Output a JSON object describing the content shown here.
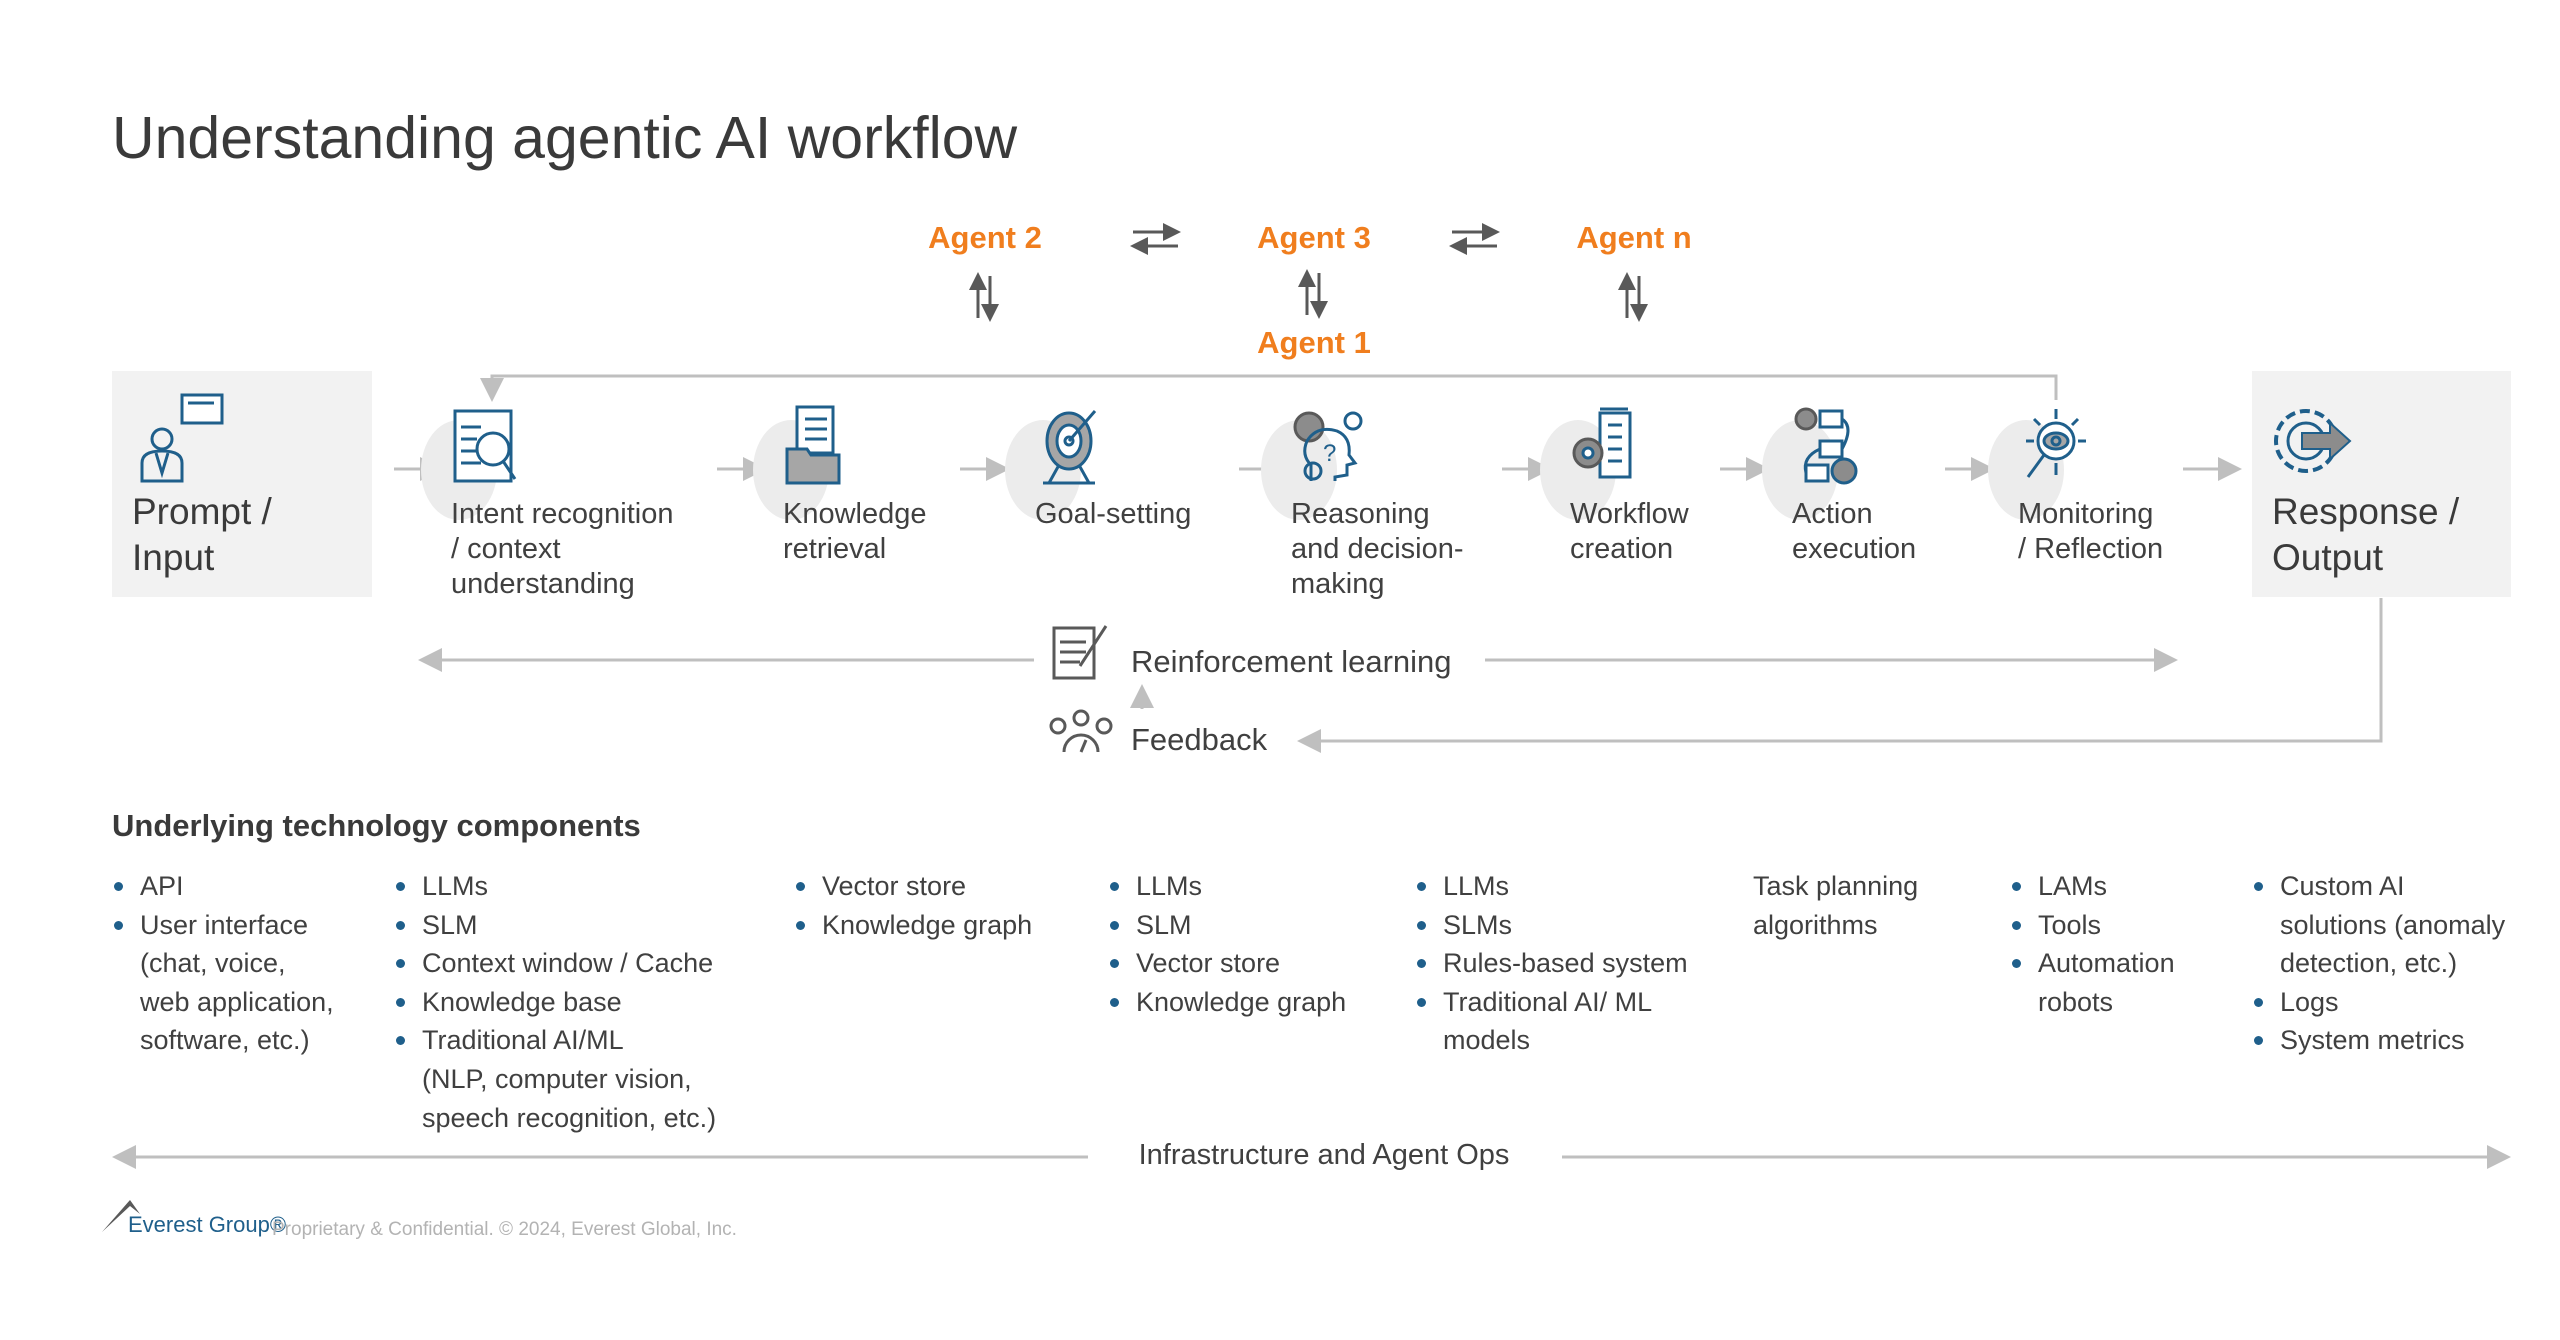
{
  "title": "Understanding agentic AI workflow",
  "agents": {
    "agent2": "Agent 2",
    "agent3": "Agent 3",
    "agentn": "Agent n",
    "agent1": "Agent 1"
  },
  "input_box": {
    "label_line1": "Prompt /",
    "label_line2": "Input",
    "icon": "user-speech-bubble-icon"
  },
  "output_box": {
    "label_line1": "Response /",
    "label_line2": "Output",
    "icon": "gear-arrow-icon"
  },
  "steps": [
    {
      "lines": [
        "Intent recognition",
        "/ context",
        "understanding"
      ],
      "icon": "document-magnifier-icon"
    },
    {
      "lines": [
        "Knowledge",
        "retrieval"
      ],
      "icon": "documents-folder-icon"
    },
    {
      "lines": [
        "Goal-setting"
      ],
      "icon": "target-icon"
    },
    {
      "lines": [
        "Reasoning",
        "and decision-",
        "making"
      ],
      "icon": "head-gears-question-icon"
    },
    {
      "lines": [
        "Workflow",
        "creation"
      ],
      "icon": "gear-document-icon"
    },
    {
      "lines": [
        "Action",
        "execution"
      ],
      "icon": "flow-check-icon"
    },
    {
      "lines": [
        "Monitoring",
        "/ Reflection"
      ],
      "icon": "eye-magnifier-icon"
    }
  ],
  "reinforcement": {
    "label": "Reinforcement learning",
    "icon": "notepad-pen-icon"
  },
  "feedback": {
    "label": "Feedback",
    "icon": "people-gauge-icon"
  },
  "tech": {
    "title": "Underlying technology components",
    "columns": [
      {
        "items": [
          "API",
          "User interface (chat, voice, web application, software, etc.)"
        ],
        "lines": [
          [
            "API"
          ],
          [
            "User interface",
            "(chat, voice,",
            "web application,",
            "software, etc.)"
          ]
        ]
      },
      {
        "lines": [
          [
            "LLMs"
          ],
          [
            "SLM"
          ],
          [
            "Context window / Cache"
          ],
          [
            "Knowledge base"
          ],
          [
            "Traditional AI/ML",
            "(NLP, computer vision,",
            "speech recognition, etc.)"
          ]
        ]
      },
      {
        "lines": [
          [
            "Vector store"
          ],
          [
            "Knowledge graph"
          ]
        ]
      },
      {
        "lines": [
          [
            "LLMs"
          ],
          [
            "SLM"
          ],
          [
            "Vector store"
          ],
          [
            "Knowledge graph"
          ]
        ]
      },
      {
        "lines": [
          [
            "LLMs"
          ],
          [
            "SLMs"
          ],
          [
            "Rules-based system"
          ],
          [
            "Traditional AI/ ML",
            "models"
          ]
        ]
      },
      {
        "plain": [
          "Task planning",
          "algorithms"
        ]
      },
      {
        "lines": [
          [
            "LAMs"
          ],
          [
            "Tools"
          ],
          [
            "Automation",
            "robots"
          ]
        ]
      },
      {
        "lines": [
          [
            "Custom AI",
            "solutions (anomaly",
            "detection, etc.)"
          ],
          [
            "Logs"
          ],
          [
            "System metrics"
          ]
        ]
      }
    ]
  },
  "infra": {
    "label": "Infrastructure and Agent Ops"
  },
  "footer": {
    "logo_text": "Everest Group®",
    "text": "Proprietary & Confidential. © 2024, Everest Global, Inc."
  },
  "colors": {
    "accent_orange": "#F07E1E",
    "icon_blue": "#1F5F8B",
    "arrow_gray": "#bfbfbf",
    "box_gray": "#f2f2f2"
  }
}
